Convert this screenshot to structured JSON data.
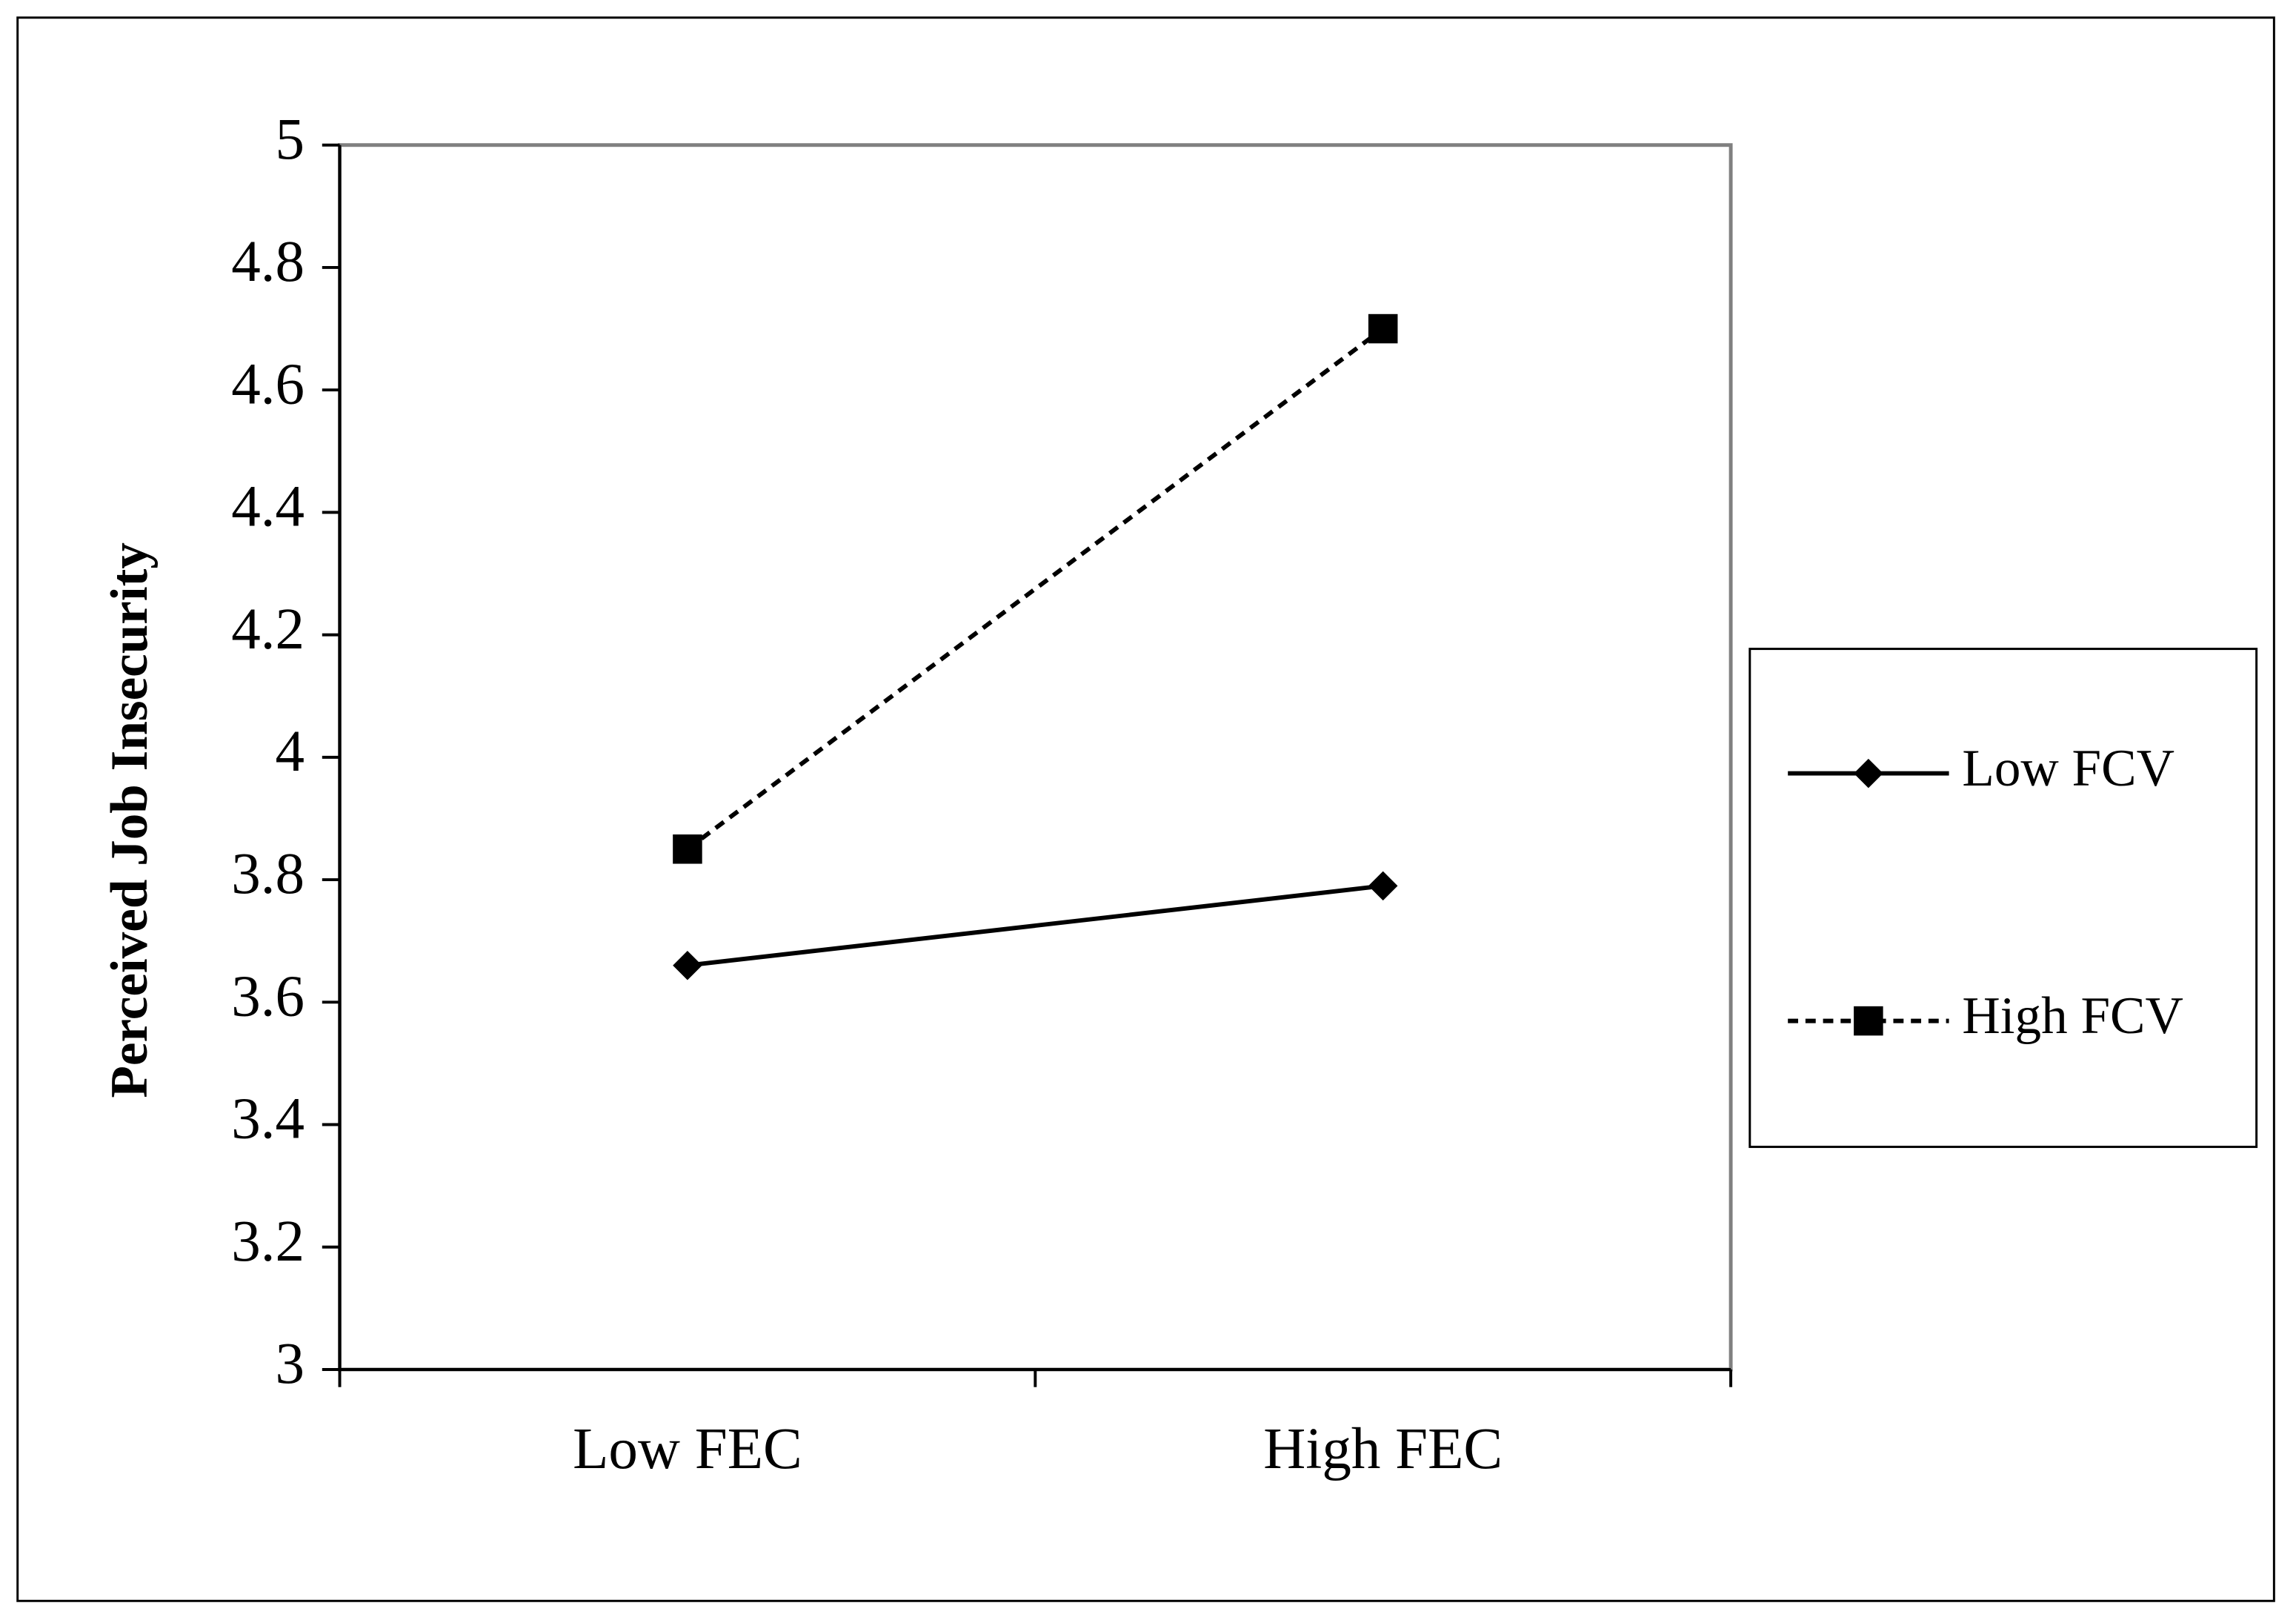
{
  "chart_data": {
    "type": "line",
    "ylabel": "Perceived Job Insecurity",
    "categories": [
      "Low FEC",
      "High FEC"
    ],
    "series": [
      {
        "name": "Low FCV",
        "color": "#000000",
        "line_style": "solid",
        "marker": "diamond",
        "values": [
          3.66,
          3.79
        ]
      },
      {
        "name": "High FCV",
        "color": "#000000",
        "line_style": "dashed",
        "marker": "square",
        "values": [
          3.85,
          4.7
        ]
      }
    ],
    "ylim": [
      3,
      5
    ],
    "yticks": [
      3,
      3.2,
      3.4,
      3.6,
      3.8,
      4,
      4.2,
      4.4,
      4.6,
      4.8,
      5
    ],
    "grid": false,
    "legend": "right"
  }
}
